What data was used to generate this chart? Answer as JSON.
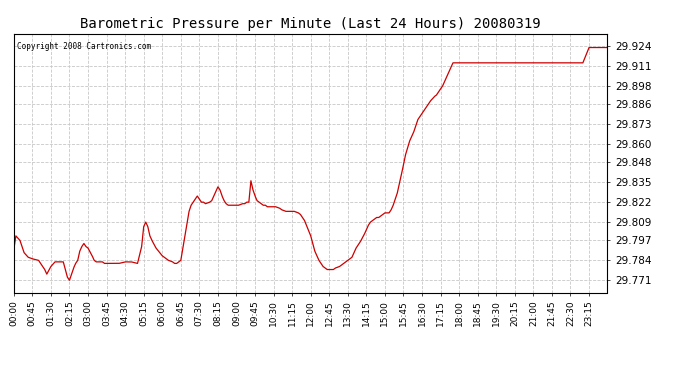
{
  "title": "Barometric Pressure per Minute (Last 24 Hours) 20080319",
  "copyright_text": "Copyright 2008 Cartronics.com",
  "line_color": "#cc0000",
  "background_color": "#ffffff",
  "plot_bg_color": "#ffffff",
  "grid_color": "#c8c8c8",
  "grid_style": "--",
  "yticks": [
    29.771,
    29.784,
    29.797,
    29.809,
    29.822,
    29.835,
    29.848,
    29.86,
    29.873,
    29.886,
    29.898,
    29.911,
    29.924
  ],
  "ylim": [
    29.763,
    29.932
  ],
  "xtick_labels": [
    "00:00",
    "00:45",
    "01:30",
    "02:15",
    "03:00",
    "03:45",
    "04:30",
    "05:15",
    "06:00",
    "06:45",
    "07:30",
    "08:15",
    "09:00",
    "09:45",
    "10:30",
    "11:15",
    "12:00",
    "12:45",
    "13:30",
    "14:15",
    "15:00",
    "15:45",
    "16:30",
    "17:15",
    "18:00",
    "18:45",
    "19:30",
    "20:15",
    "21:00",
    "21:45",
    "22:30",
    "23:15"
  ],
  "key_points_minutes": [
    [
      0,
      29.791
    ],
    [
      5,
      29.8
    ],
    [
      15,
      29.797
    ],
    [
      25,
      29.789
    ],
    [
      35,
      29.786
    ],
    [
      45,
      29.785
    ],
    [
      60,
      29.784
    ],
    [
      75,
      29.778
    ],
    [
      80,
      29.775
    ],
    [
      90,
      29.78
    ],
    [
      100,
      29.783
    ],
    [
      110,
      29.783
    ],
    [
      120,
      29.783
    ],
    [
      130,
      29.773
    ],
    [
      135,
      29.771
    ],
    [
      145,
      29.779
    ],
    [
      150,
      29.782
    ],
    [
      155,
      29.784
    ],
    [
      160,
      29.79
    ],
    [
      165,
      29.793
    ],
    [
      170,
      29.795
    ],
    [
      175,
      29.793
    ],
    [
      180,
      29.792
    ],
    [
      190,
      29.787
    ],
    [
      195,
      29.784
    ],
    [
      200,
      29.783
    ],
    [
      210,
      29.783
    ],
    [
      215,
      29.783
    ],
    [
      220,
      29.782
    ],
    [
      225,
      29.782
    ],
    [
      240,
      29.782
    ],
    [
      245,
      29.782
    ],
    [
      250,
      29.782
    ],
    [
      255,
      29.782
    ],
    [
      270,
      29.783
    ],
    [
      285,
      29.783
    ],
    [
      300,
      29.782
    ],
    [
      310,
      29.793
    ],
    [
      315,
      29.806
    ],
    [
      320,
      29.809
    ],
    [
      325,
      29.806
    ],
    [
      330,
      29.8
    ],
    [
      335,
      29.797
    ],
    [
      345,
      29.792
    ],
    [
      360,
      29.787
    ],
    [
      375,
      29.784
    ],
    [
      385,
      29.783
    ],
    [
      390,
      29.782
    ],
    [
      395,
      29.782
    ],
    [
      405,
      29.784
    ],
    [
      415,
      29.8
    ],
    [
      420,
      29.808
    ],
    [
      425,
      29.816
    ],
    [
      430,
      29.82
    ],
    [
      435,
      29.822
    ],
    [
      440,
      29.824
    ],
    [
      445,
      29.826
    ],
    [
      450,
      29.824
    ],
    [
      455,
      29.822
    ],
    [
      460,
      29.822
    ],
    [
      465,
      29.821
    ],
    [
      475,
      29.822
    ],
    [
      480,
      29.823
    ],
    [
      490,
      29.829
    ],
    [
      495,
      29.832
    ],
    [
      500,
      29.83
    ],
    [
      505,
      29.826
    ],
    [
      510,
      29.823
    ],
    [
      515,
      29.821
    ],
    [
      520,
      29.82
    ],
    [
      525,
      29.82
    ],
    [
      530,
      29.82
    ],
    [
      540,
      29.82
    ],
    [
      545,
      29.82
    ],
    [
      555,
      29.821
    ],
    [
      560,
      29.821
    ],
    [
      565,
      29.822
    ],
    [
      570,
      29.822
    ],
    [
      575,
      29.836
    ],
    [
      580,
      29.83
    ],
    [
      585,
      29.826
    ],
    [
      590,
      29.823
    ],
    [
      600,
      29.821
    ],
    [
      605,
      29.82
    ],
    [
      610,
      29.82
    ],
    [
      615,
      29.819
    ],
    [
      620,
      29.819
    ],
    [
      625,
      29.819
    ],
    [
      630,
      29.819
    ],
    [
      635,
      29.819
    ],
    [
      645,
      29.818
    ],
    [
      650,
      29.817
    ],
    [
      660,
      29.816
    ],
    [
      665,
      29.816
    ],
    [
      675,
      29.816
    ],
    [
      680,
      29.816
    ],
    [
      690,
      29.815
    ],
    [
      695,
      29.814
    ],
    [
      700,
      29.812
    ],
    [
      705,
      29.81
    ],
    [
      720,
      29.8
    ],
    [
      730,
      29.79
    ],
    [
      740,
      29.784
    ],
    [
      750,
      29.78
    ],
    [
      755,
      29.779
    ],
    [
      760,
      29.778
    ],
    [
      765,
      29.778
    ],
    [
      775,
      29.778
    ],
    [
      780,
      29.779
    ],
    [
      790,
      29.78
    ],
    [
      795,
      29.781
    ],
    [
      800,
      29.782
    ],
    [
      805,
      29.783
    ],
    [
      810,
      29.784
    ],
    [
      820,
      29.786
    ],
    [
      830,
      29.792
    ],
    [
      840,
      29.796
    ],
    [
      850,
      29.801
    ],
    [
      855,
      29.804
    ],
    [
      860,
      29.807
    ],
    [
      865,
      29.809
    ],
    [
      870,
      29.81
    ],
    [
      880,
      29.812
    ],
    [
      885,
      29.812
    ],
    [
      895,
      29.814
    ],
    [
      900,
      29.815
    ],
    [
      910,
      29.815
    ],
    [
      915,
      29.817
    ],
    [
      920,
      29.82
    ],
    [
      930,
      29.828
    ],
    [
      940,
      29.84
    ],
    [
      950,
      29.853
    ],
    [
      960,
      29.862
    ],
    [
      970,
      29.868
    ],
    [
      975,
      29.872
    ],
    [
      980,
      29.876
    ],
    [
      990,
      29.88
    ],
    [
      1000,
      29.884
    ],
    [
      1005,
      29.886
    ],
    [
      1010,
      29.888
    ],
    [
      1020,
      29.891
    ],
    [
      1025,
      29.892
    ],
    [
      1030,
      29.894
    ],
    [
      1035,
      29.896
    ],
    [
      1040,
      29.898
    ],
    [
      1050,
      29.904
    ],
    [
      1060,
      29.91
    ],
    [
      1065,
      29.913
    ],
    [
      1380,
      29.913
    ],
    [
      1395,
      29.923
    ]
  ]
}
